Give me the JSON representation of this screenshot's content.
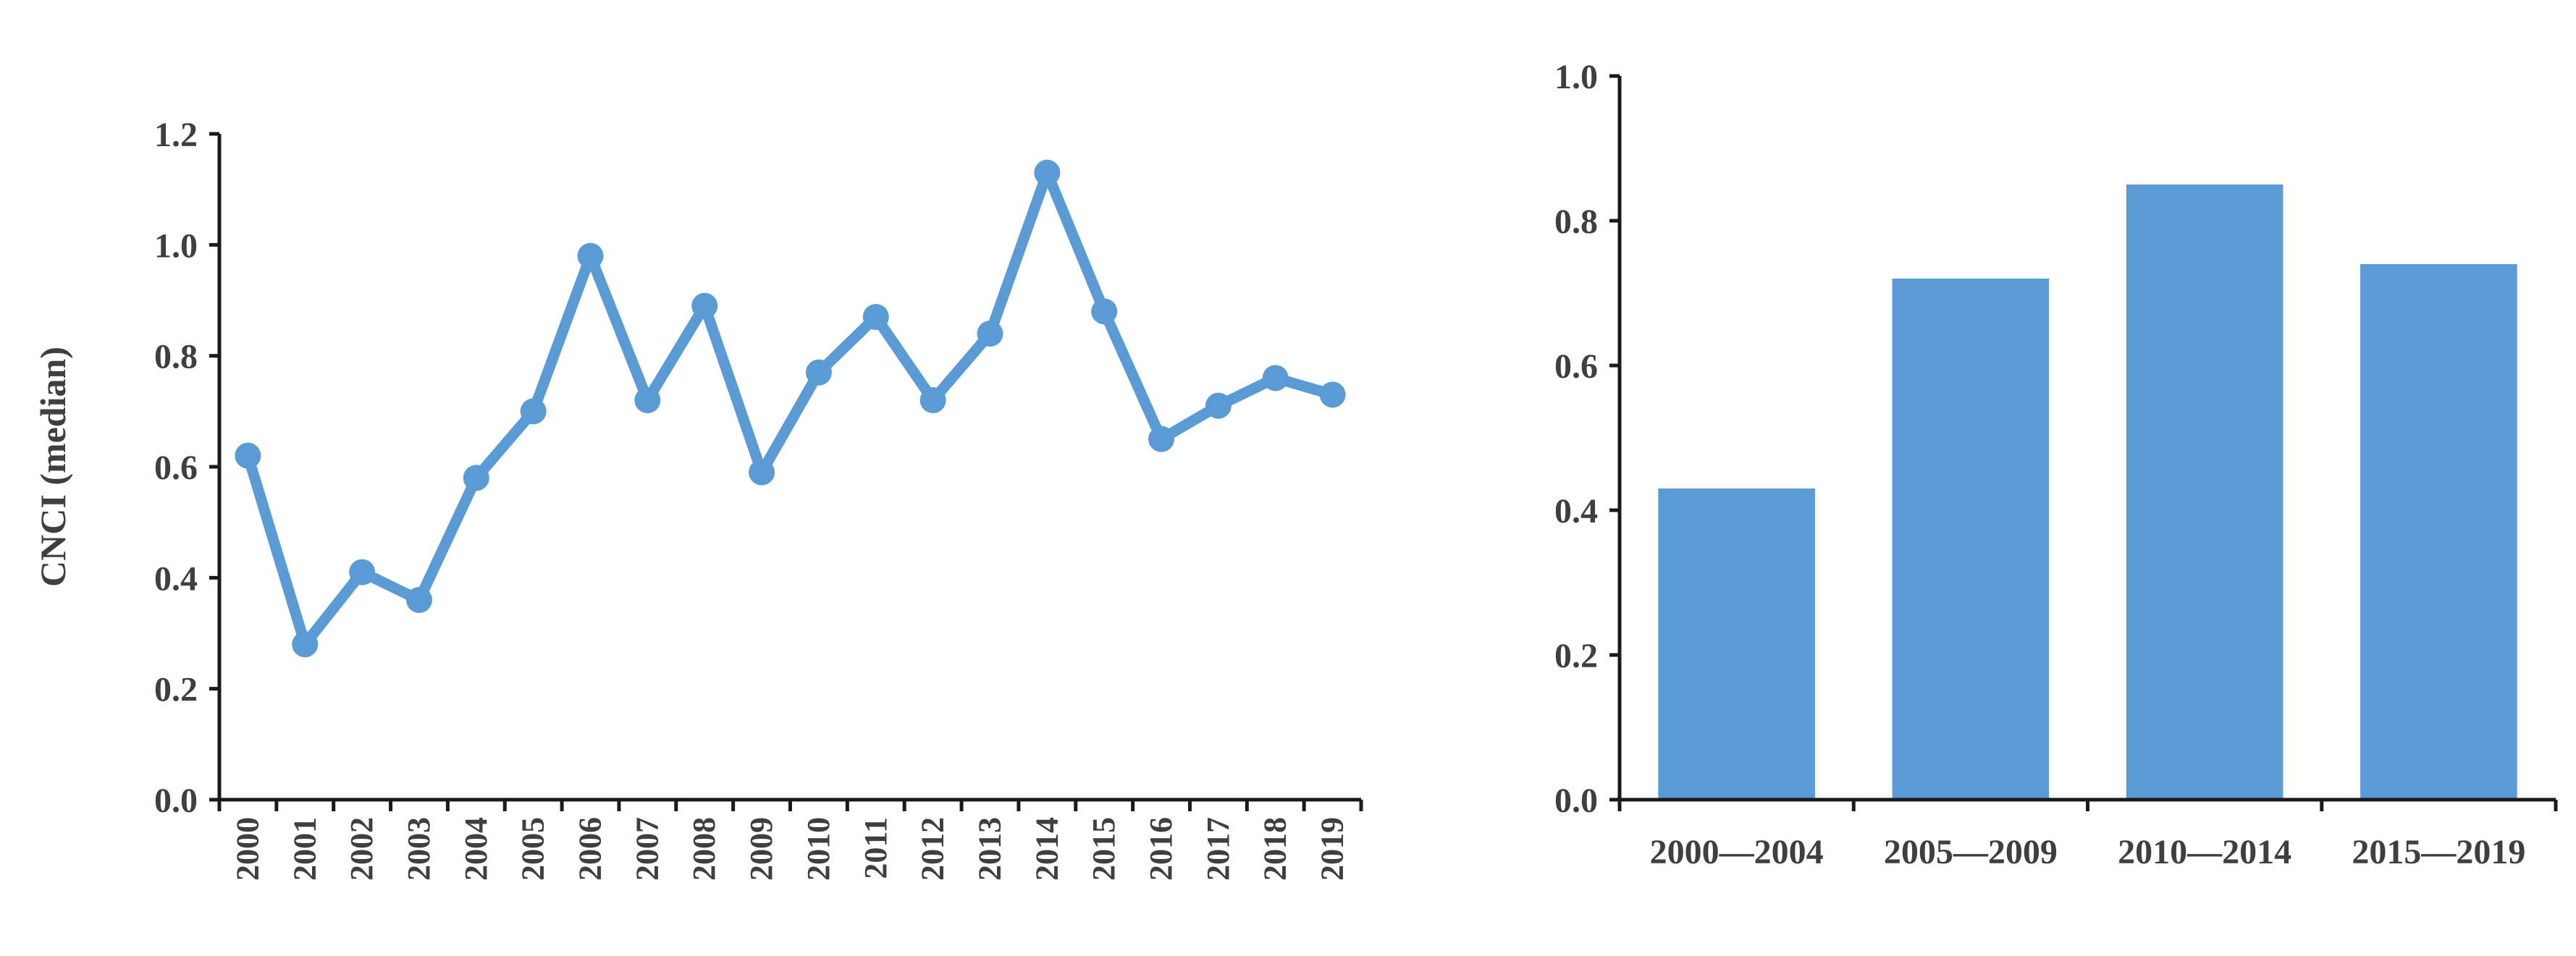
{
  "chart_data": [
    {
      "type": "line",
      "title": "",
      "xlabel": "",
      "ylabel": "CNCI (median)",
      "ylim": [
        0,
        1.2
      ],
      "yticks": [
        "0.0",
        "0.2",
        "0.4",
        "0.6",
        "0.8",
        "1.0",
        "1.2"
      ],
      "x": [
        "2000",
        "2001",
        "2002",
        "2003",
        "2004",
        "2005",
        "2006",
        "2007",
        "2008",
        "2009",
        "2010",
        "2011",
        "2012",
        "2013",
        "2014",
        "2015",
        "2016",
        "2017",
        "2018",
        "2019"
      ],
      "values": [
        0.62,
        0.28,
        0.41,
        0.36,
        0.58,
        0.7,
        0.98,
        0.72,
        0.89,
        0.59,
        0.77,
        0.87,
        0.72,
        0.84,
        1.13,
        0.88,
        0.65,
        0.71,
        0.76,
        0.73
      ],
      "color": "#5b9bd5",
      "grid": false,
      "legend": "none"
    },
    {
      "type": "bar",
      "title": "",
      "xlabel": "",
      "ylabel": "",
      "ylim": [
        0,
        1.0
      ],
      "yticks": [
        "0.0",
        "0.2",
        "0.4",
        "0.6",
        "0.8",
        "1.0"
      ],
      "categories": [
        "2000—2004",
        "2005—2009",
        "2010—2014",
        "2015—2019"
      ],
      "values": [
        0.43,
        0.72,
        0.85,
        0.74
      ],
      "color": "#5b9bd5",
      "grid": false,
      "legend": "none"
    }
  ]
}
